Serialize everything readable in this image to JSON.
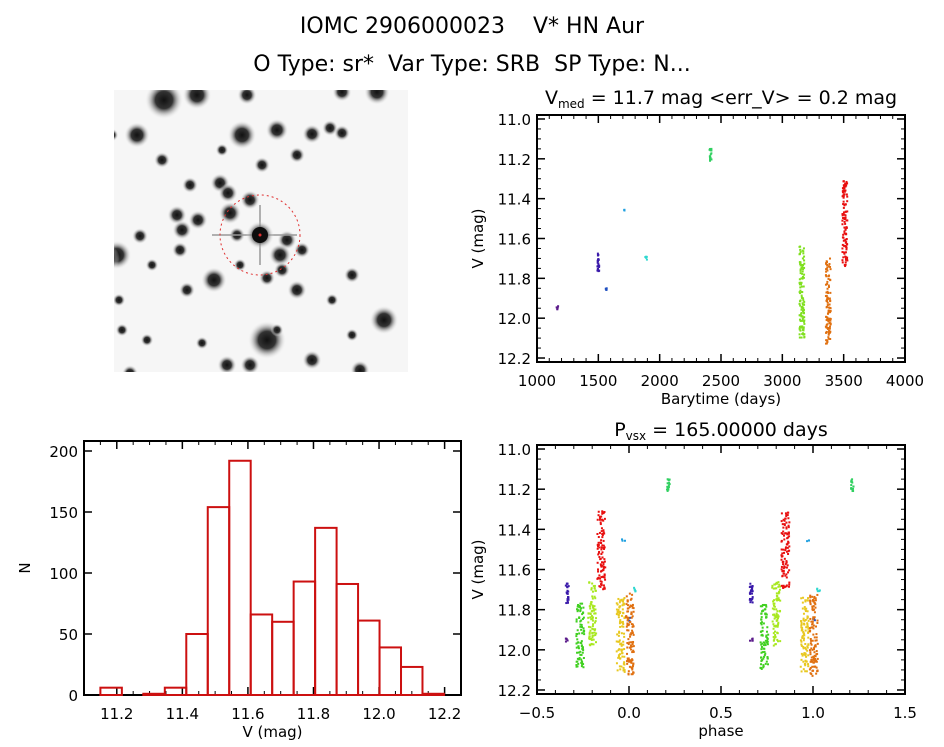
{
  "header": {
    "title": "IOMC 2906000023    V* HN Aur",
    "subtitle": "O Type: sr*  Var Type: SRB  SP Type: N..."
  },
  "sky_image": {
    "description": "Inverted grayscale star field with red dashed target circle",
    "circle_color": "#e03030"
  },
  "chart_data": [
    {
      "id": "light_curve",
      "type": "scatter",
      "title": "V_med = 11.7 mag <err_V> = 0.2 mag",
      "title_parts": {
        "main": "V",
        "sub": "med",
        "rest": " = 11.7 mag <err_V> = 0.2 mag"
      },
      "xlabel": "Barytime (days)",
      "ylabel": "V (mag)",
      "xlim": [
        1000,
        4000
      ],
      "ylim": [
        12.22,
        10.98
      ],
      "y_inverted": true,
      "xticks": [
        "1000",
        "1500",
        "2000",
        "2500",
        "3000",
        "3500",
        "4000"
      ],
      "yticks": [
        "11.0",
        "11.2",
        "11.4",
        "11.6",
        "11.8",
        "12.0",
        "12.2"
      ],
      "series": [
        {
          "name": "g1",
          "color": "#5a1a8a",
          "x": 1165,
          "ymin": 11.94,
          "ymax": 11.96
        },
        {
          "name": "g2",
          "color": "#3a1aaa",
          "x": 1500,
          "ymin": 11.67,
          "ymax": 11.77
        },
        {
          "name": "g3",
          "color": "#2050c0",
          "x": 1565,
          "ymin": 11.84,
          "ymax": 11.86
        },
        {
          "name": "g4",
          "color": "#20a0e0",
          "x": 1715,
          "ymin": 11.45,
          "ymax": 11.46
        },
        {
          "name": "g5",
          "color": "#30d8d0",
          "x": 1890,
          "ymin": 11.69,
          "ymax": 11.71
        },
        {
          "name": "g6",
          "color": "#30d060",
          "x": 2415,
          "ymin": 11.15,
          "ymax": 11.21
        },
        {
          "name": "g7",
          "color": "#80e020",
          "x": 3160,
          "ymin": 11.64,
          "ymax": 12.1
        },
        {
          "name": "g8",
          "color": "#e07010",
          "x": 3375,
          "ymin": 11.7,
          "ymax": 12.13
        },
        {
          "name": "g9",
          "color": "#e81010",
          "x": 3510,
          "ymin": 11.31,
          "ymax": 11.74
        }
      ]
    },
    {
      "id": "histogram",
      "type": "bar",
      "title": "",
      "xlabel": "V (mag)",
      "ylabel": "N",
      "xlim": [
        11.1,
        12.25
      ],
      "ylim": [
        0,
        200
      ],
      "xticks": [
        "11.2",
        "11.4",
        "11.6",
        "11.8",
        "12.0",
        "12.2"
      ],
      "yticks": [
        "0",
        "50",
        "100",
        "150",
        "200"
      ],
      "bar_color": "#cc1010",
      "bin_width": 0.0655,
      "bin_start": 11.15,
      "values": [
        6,
        0,
        1,
        6,
        50,
        154,
        192,
        66,
        60,
        93,
        137,
        91,
        61,
        39,
        23,
        1
      ]
    },
    {
      "id": "phase_curve",
      "type": "scatter",
      "title": "P_vsx = 165.00000 days",
      "title_parts": {
        "main": "P",
        "sub": "vsx",
        "rest": " = 165.00000 days"
      },
      "xlabel": "phase",
      "ylabel": "V (mag)",
      "xlim": [
        -0.5,
        1.5
      ],
      "ylim": [
        12.22,
        10.98
      ],
      "y_inverted": true,
      "xticks": [
        "−0.5",
        "0.0",
        "0.5",
        "1.0",
        "1.5"
      ],
      "yticks": [
        "11.0",
        "11.2",
        "11.4",
        "11.6",
        "11.8",
        "12.0",
        "12.2"
      ],
      "series": [
        {
          "name": "g1",
          "color": "#5a1a8a",
          "x": -0.335,
          "ymin": 11.94,
          "ymax": 11.96
        },
        {
          "name": "g2",
          "color": "#3a1aaa",
          "x": -0.335,
          "ymin": 11.67,
          "ymax": 11.77
        },
        {
          "name": "g3",
          "color": "#2050c0",
          "x": 0.005,
          "ymin": 11.84,
          "ymax": 11.86
        },
        {
          "name": "g4",
          "color": "#20a0e0",
          "x": -0.03,
          "ymin": 11.45,
          "ymax": 11.46
        },
        {
          "name": "g5",
          "color": "#30d8d0",
          "x": 0.03,
          "ymin": 11.69,
          "ymax": 11.71
        },
        {
          "name": "g6",
          "color": "#30d060",
          "x": 0.215,
          "ymin": 11.15,
          "ymax": 11.21
        },
        {
          "name": "g7a",
          "color": "#40d020",
          "x": -0.265,
          "ymin": 11.77,
          "ymax": 12.1
        },
        {
          "name": "g7b",
          "color": "#a8e820",
          "x": -0.2,
          "ymin": 11.66,
          "ymax": 11.98
        },
        {
          "name": "g8a",
          "color": "#e8c820",
          "x": -0.045,
          "ymin": 11.74,
          "ymax": 12.11
        },
        {
          "name": "g8b",
          "color": "#e07010",
          "x": 0.005,
          "ymin": 11.72,
          "ymax": 12.13
        },
        {
          "name": "g9",
          "color": "#e81010",
          "x": -0.15,
          "ymin": 11.31,
          "ymax": 11.7
        }
      ]
    }
  ]
}
